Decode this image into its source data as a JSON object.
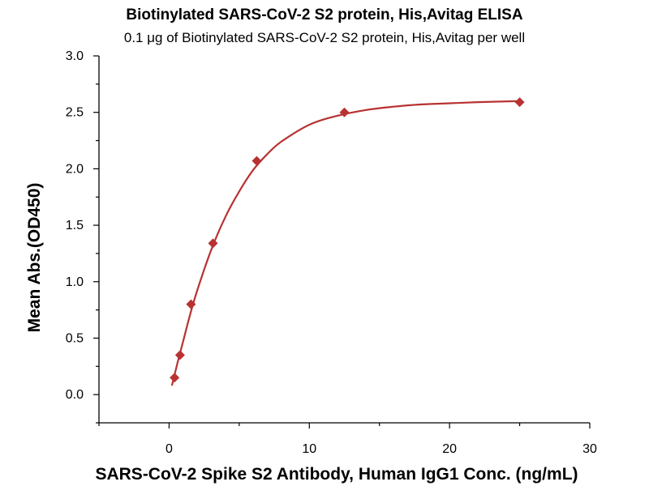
{
  "chart_data": {
    "type": "scatter",
    "title": "Biotinylated SARS-CoV-2 S2 protein, His,Avitag ELISA",
    "subtitle": "0.1 μg of Biotinylated SARS-CoV-2 S2 protein, His,Avitag per well",
    "xlabel": "SARS-CoV-2 Spike S2 Antibody, Human IgG1 Conc. (ng/mL)",
    "ylabel": "Mean Abs.(OD450)",
    "xlim": [
      -5,
      30
    ],
    "ylim": [
      -0.25,
      3.0
    ],
    "x_ticks": [
      0,
      10,
      20,
      30
    ],
    "x_tick_labels": [
      "0",
      "10",
      "20",
      "30"
    ],
    "y_ticks": [
      0.0,
      0.5,
      1.0,
      1.5,
      2.0,
      2.5,
      3.0
    ],
    "y_tick_labels": [
      "0.0",
      "0.5",
      "1.0",
      "1.5",
      "2.0",
      "2.5",
      "3.0"
    ],
    "grid": false,
    "legend": "none",
    "series": [
      {
        "x": [
          0.39,
          0.78,
          1.56,
          3.13,
          6.25,
          12.5,
          25
        ],
        "y": [
          0.15,
          0.35,
          0.8,
          1.34,
          2.07,
          2.5,
          2.59
        ],
        "marker": "diamond",
        "color": "#b83232"
      }
    ],
    "fit_curve": {
      "color": "#b83232",
      "x": [
        0.2,
        0.4,
        0.7,
        1.0,
        1.5,
        2.0,
        3.0,
        4.0,
        5.0,
        6.0,
        7.0,
        8.0,
        10.0,
        12.0,
        14.0,
        16.0,
        18.0,
        20.0,
        22.0,
        25.0
      ],
      "y": [
        0.08,
        0.18,
        0.33,
        0.47,
        0.71,
        0.92,
        1.28,
        1.57,
        1.8,
        1.99,
        2.13,
        2.24,
        2.39,
        2.47,
        2.52,
        2.55,
        2.57,
        2.58,
        2.59,
        2.6
      ]
    }
  }
}
